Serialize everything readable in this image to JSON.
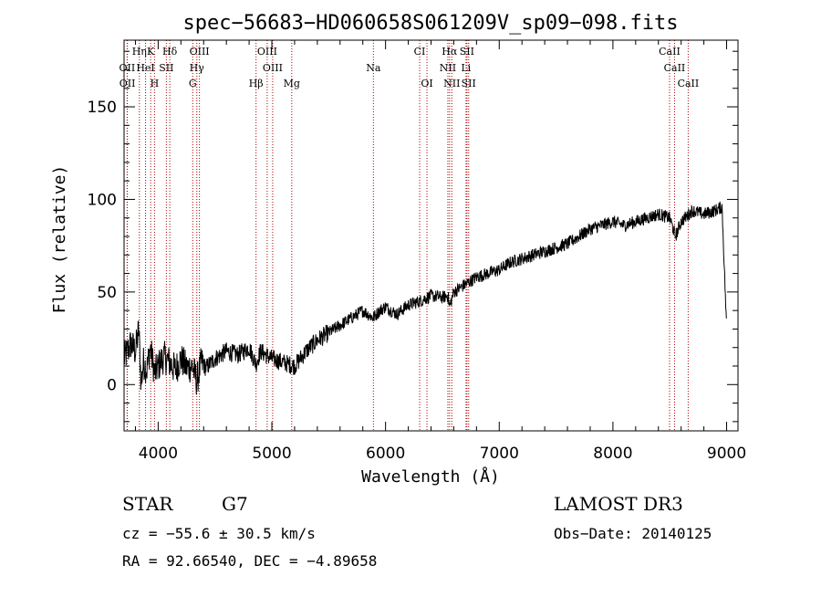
{
  "chart_data": {
    "type": "line",
    "title": "spec−56683−HD060658S061209V_sp09−098.fits",
    "xlabel": "Wavelength (Å)",
    "ylabel": "Flux (relative)",
    "xlim": [
      3700,
      9100
    ],
    "ylim": [
      -25,
      186
    ],
    "x_ticks": [
      4000,
      5000,
      6000,
      7000,
      8000,
      9000
    ],
    "y_ticks": [
      0,
      50,
      100,
      150
    ],
    "grid": false,
    "legend": "none",
    "line_color": "#000000",
    "marker_color": "#aa0000",
    "series": [
      {
        "name": "flux",
        "x": [
          3700,
          3760,
          3800,
          3830,
          3850,
          3870,
          3900,
          3930,
          3970,
          4000,
          4050,
          4100,
          4150,
          4200,
          4250,
          4300,
          4340,
          4380,
          4420,
          4500,
          4600,
          4700,
          4800,
          4860,
          4900,
          5000,
          5100,
          5200,
          5300,
          5400,
          5500,
          5600,
          5700,
          5800,
          5890,
          5950,
          6000,
          6100,
          6200,
          6300,
          6400,
          6500,
          6550,
          6563,
          6600,
          6700,
          6800,
          6900,
          7000,
          7100,
          7200,
          7300,
          7400,
          7500,
          7600,
          7700,
          7800,
          7900,
          8000,
          8100,
          8200,
          8300,
          8400,
          8500,
          8550,
          8600,
          8700,
          8800,
          8900,
          8960,
          9000
        ],
        "y": [
          14,
          22,
          18,
          30,
          0,
          12,
          8,
          20,
          6,
          10,
          15,
          12,
          8,
          14,
          9,
          10,
          2,
          12,
          9,
          14,
          18,
          16,
          20,
          11,
          18,
          14,
          12,
          10,
          18,
          24,
          28,
          32,
          36,
          40,
          36,
          40,
          42,
          38,
          43,
          45,
          48,
          47,
          48,
          42,
          50,
          54,
          58,
          60,
          62,
          66,
          68,
          70,
          72,
          74,
          76,
          80,
          84,
          86,
          88,
          86,
          88,
          90,
          92,
          90,
          80,
          88,
          94,
          92,
          94,
          96,
          30
        ]
      }
    ],
    "spectral_lines": [
      {
        "label": "Hη",
        "wavelength": 3835,
        "row": 0
      },
      {
        "label": "K",
        "wavelength": 3934,
        "row": 0
      },
      {
        "label": "Hδ",
        "wavelength": 4102,
        "row": 0
      },
      {
        "label": "OIII",
        "wavelength": 4363,
        "row": 0
      },
      {
        "label": "OIII",
        "wavelength": 4959,
        "row": 0
      },
      {
        "label": "CI",
        "wavelength": 6300,
        "row": 0
      },
      {
        "label": "Hα",
        "wavelength": 6563,
        "row": 0
      },
      {
        "label": "SII",
        "wavelength": 6716,
        "row": 0
      },
      {
        "label": "CaII",
        "wavelength": 8498,
        "row": 0
      },
      {
        "label": "OII",
        "wavelength": 3727,
        "row": 1
      },
      {
        "label": "HeI",
        "wavelength": 3889,
        "row": 1
      },
      {
        "label": "SII",
        "wavelength": 4072,
        "row": 1
      },
      {
        "label": "Hγ",
        "wavelength": 4340,
        "row": 1
      },
      {
        "label": "OIII",
        "wavelength": 5007,
        "row": 1
      },
      {
        "label": "Na",
        "wavelength": 5893,
        "row": 1
      },
      {
        "label": "NII",
        "wavelength": 6548,
        "row": 1
      },
      {
        "label": "Li",
        "wavelength": 6708,
        "row": 1
      },
      {
        "label": "CaII",
        "wavelength": 8542,
        "row": 1
      },
      {
        "label": "OII",
        "wavelength": 3729,
        "row": 2
      },
      {
        "label": "H",
        "wavelength": 3968,
        "row": 2
      },
      {
        "label": "G",
        "wavelength": 4304,
        "row": 2
      },
      {
        "label": "Hβ",
        "wavelength": 4861,
        "row": 2
      },
      {
        "label": "Mg",
        "wavelength": 5175,
        "row": 2
      },
      {
        "label": "OI",
        "wavelength": 6364,
        "row": 2
      },
      {
        "label": "NII",
        "wavelength": 6583,
        "row": 2
      },
      {
        "label": "SII",
        "wavelength": 6731,
        "row": 2
      },
      {
        "label": "CaII",
        "wavelength": 8662,
        "row": 2
      }
    ]
  },
  "info": {
    "class": "STAR",
    "subclass": "G7",
    "survey": "LAMOST DR3",
    "redshift": "cz = −55.6 ± 30.5 km/s",
    "obs_date": "Obs−Date: 20140125",
    "coords": "RA =  92.66540, DEC =  −4.89658"
  }
}
